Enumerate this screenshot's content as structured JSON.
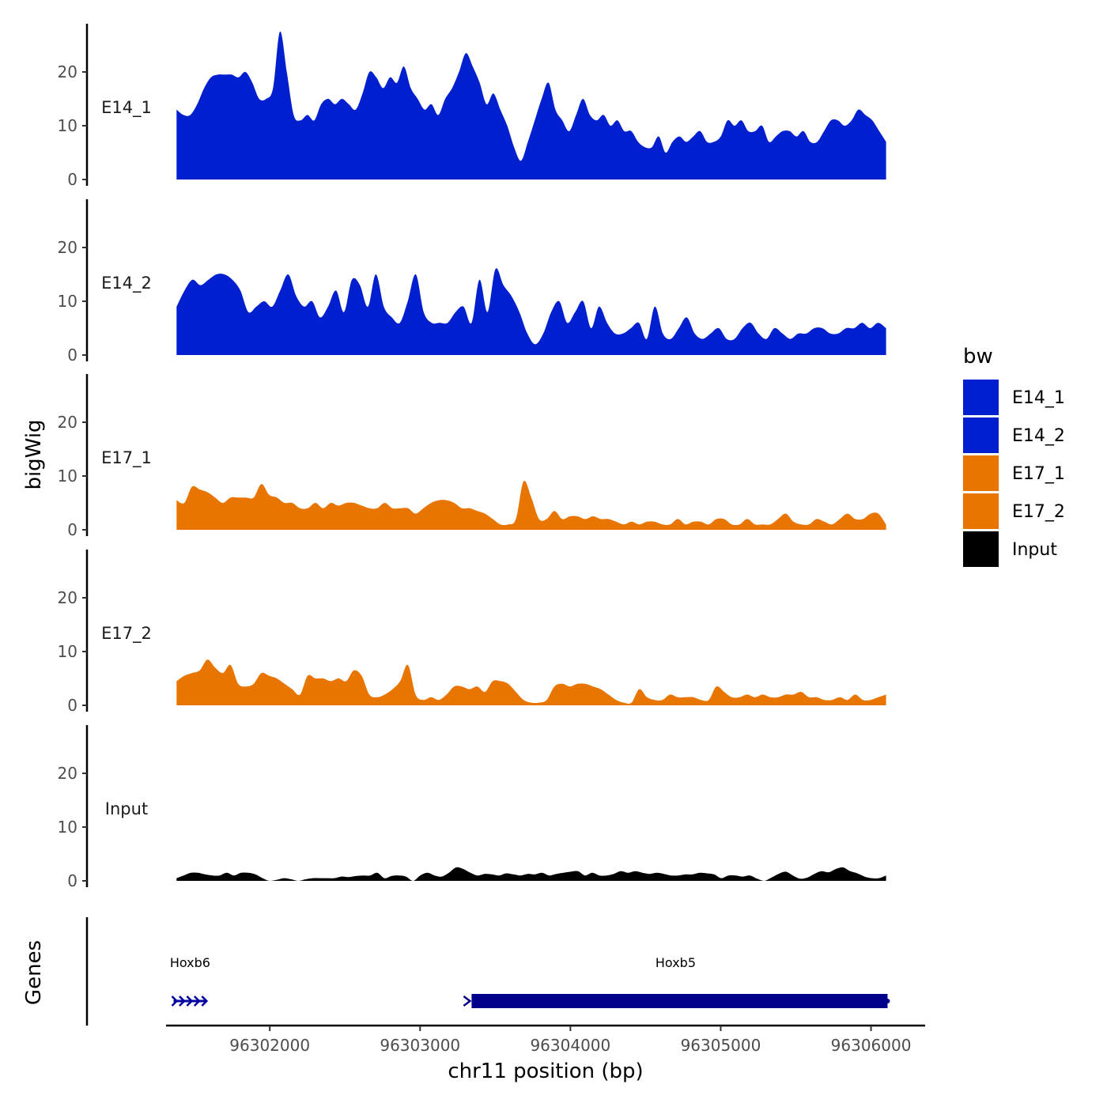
{
  "chart_data": {
    "type": "area",
    "title": "",
    "xlabel": "chr11 position (bp)",
    "ylabel": "bigWig",
    "genes_label": "Genes",
    "xlim": [
      96301310,
      96306360
    ],
    "x_ticks": [
      96302000,
      96303000,
      96304000,
      96305000,
      96306000
    ],
    "x_tick_labels": [
      "96302000",
      "96303000",
      "96304000",
      "96305000",
      "96306000"
    ],
    "ylim": [
      0,
      29
    ],
    "y_ticks": [
      0,
      10,
      20
    ],
    "y_tick_labels": [
      "0",
      "10",
      "20"
    ],
    "data_range": [
      96301380,
      96306100
    ],
    "legend": {
      "title": "bw",
      "position": "right",
      "entries": [
        {
          "name": "E14_1",
          "color": "#0020d0"
        },
        {
          "name": "E14_2",
          "color": "#0020d0"
        },
        {
          "name": "E17_1",
          "color": "#e87500"
        },
        {
          "name": "E17_2",
          "color": "#e87500"
        },
        {
          "name": "Input",
          "color": "#000000"
        }
      ]
    },
    "series": [
      {
        "name": "E14_1",
        "color": "#0020d0",
        "values": [
          13,
          12,
          12,
          14,
          17,
          19,
          19.5,
          19.5,
          19.5,
          19,
          20,
          18,
          15,
          15,
          17,
          27.5,
          20,
          12,
          11,
          12,
          11,
          14,
          15,
          14,
          15,
          14,
          13,
          16,
          20,
          19,
          17,
          19,
          18,
          21,
          17,
          15,
          13,
          14,
          12,
          15,
          17,
          20,
          23.5,
          21,
          18,
          14,
          16,
          13,
          10,
          6,
          3.5,
          7,
          11,
          15,
          18,
          13,
          11,
          9,
          12,
          15,
          12,
          11,
          12,
          10,
          11,
          9,
          9,
          7,
          6,
          6,
          8,
          5,
          7,
          8,
          7,
          8,
          9,
          7,
          7,
          8,
          11,
          10,
          11,
          9,
          9,
          10,
          7,
          8,
          9,
          9,
          8,
          9,
          7,
          7,
          9,
          11,
          11,
          10,
          11,
          13,
          12,
          11,
          9,
          7
        ]
      },
      {
        "name": "E14_2",
        "color": "#0020d0",
        "values": [
          9,
          12,
          14,
          13,
          14,
          15,
          15,
          14,
          12,
          8,
          9,
          10,
          9,
          12,
          15,
          11,
          9,
          10,
          7,
          9,
          12,
          8,
          14,
          13,
          9,
          15,
          9,
          7,
          6,
          10,
          15,
          8,
          6,
          6,
          6,
          8,
          9,
          6,
          14,
          8,
          16,
          13,
          11,
          8,
          4,
          2,
          4,
          8,
          10,
          6,
          8,
          10,
          5,
          9,
          6,
          4,
          4,
          5,
          6,
          3,
          9,
          4,
          3,
          5,
          7,
          4,
          3,
          4,
          5,
          3,
          3,
          5,
          6,
          4,
          3,
          5,
          4,
          3,
          4,
          4,
          5,
          5,
          4,
          4,
          5,
          5,
          6,
          5,
          6,
          5
        ]
      },
      {
        "name": "E17_1",
        "color": "#e87500",
        "values": [
          5.5,
          5,
          8,
          7.5,
          7,
          6,
          5,
          6,
          6,
          6,
          6,
          8.5,
          6.5,
          6,
          5,
          5,
          4,
          4,
          5,
          4,
          5,
          4.5,
          5,
          5,
          4.5,
          4,
          4,
          5,
          4,
          4,
          4,
          3,
          4,
          5,
          5.5,
          5.5,
          5,
          4,
          4,
          3.5,
          3,
          2,
          1,
          1,
          2,
          9,
          6,
          2,
          2,
          3.5,
          2,
          2.5,
          2.5,
          2,
          2.5,
          2,
          2,
          1.5,
          1,
          1.5,
          1,
          1.5,
          1.5,
          1,
          1,
          2,
          1,
          1.5,
          1.5,
          1,
          2,
          2,
          1,
          1,
          2,
          1,
          1,
          1,
          2,
          3,
          1.5,
          1,
          1,
          2,
          1.5,
          1,
          2,
          3,
          2,
          2,
          3,
          3,
          1
        ]
      },
      {
        "name": "E17_2",
        "color": "#e87500",
        "values": [
          4.5,
          5.5,
          6,
          6.5,
          8.5,
          7,
          6,
          7.5,
          4,
          3.5,
          4,
          6,
          5.5,
          5,
          4,
          3,
          2,
          5.5,
          5,
          5,
          4.5,
          5,
          4.5,
          6.5,
          5.5,
          2,
          1.5,
          2,
          3,
          4.5,
          7.5,
          2,
          1,
          1.5,
          1,
          2,
          3.5,
          3.5,
          3,
          3.5,
          2.5,
          4.5,
          4.5,
          4,
          2.5,
          1,
          0.5,
          0.5,
          1,
          3.5,
          4,
          3.5,
          4,
          4,
          3.5,
          3,
          2,
          1,
          0.5,
          0.5,
          3,
          1.5,
          1,
          1,
          2,
          1.5,
          1.5,
          1.5,
          1,
          1,
          3.5,
          2.5,
          1.5,
          1.5,
          2,
          1.5,
          2,
          1.5,
          1.5,
          2,
          2,
          2.5,
          1.5,
          1.5,
          1,
          1,
          1.5,
          1,
          2,
          1,
          1,
          1.5,
          2
        ]
      },
      {
        "name": "Input",
        "color": "#000000",
        "values": [
          0.5,
          1,
          1.5,
          1.5,
          1.2,
          1,
          1,
          1.5,
          1,
          1.5,
          1.5,
          1.2,
          0.5,
          0,
          0.2,
          0.5,
          0.3,
          0,
          0.3,
          0.5,
          0.5,
          0.5,
          0.5,
          0.8,
          0.7,
          0.9,
          1,
          1,
          1.5,
          0.5,
          0.9,
          1,
          0.8,
          0,
          1,
          1.5,
          1,
          0.8,
          1.5,
          2.5,
          2.2,
          1.5,
          1,
          1.3,
          1.2,
          1,
          1.4,
          1.2,
          1,
          1.3,
          1.2,
          1.5,
          1,
          1.3,
          1.5,
          1.7,
          1.8,
          1,
          1.5,
          1,
          1,
          1.3,
          1.8,
          1.5,
          1.8,
          1.5,
          1.3,
          1.5,
          1.3,
          1,
          1,
          1.2,
          1.2,
          1.5,
          1.4,
          1.2,
          0.5,
          1,
          1,
          0.8,
          1,
          0.4,
          0,
          0.6,
          1.3,
          1.7,
          1,
          0.4,
          0.6,
          1.3,
          1.8,
          1.6,
          2.2,
          2.5,
          1.8,
          1.4,
          0.8,
          0.5,
          0.5,
          1
        ]
      }
    ],
    "genes": [
      {
        "name": "Hoxb6",
        "start": 96301360,
        "end": 96301580,
        "strand": "+",
        "color": "#0000a0"
      },
      {
        "name": "Hoxb5",
        "start": 96303290,
        "end": 96306110,
        "strand": "+",
        "color": "#00008b"
      }
    ]
  }
}
